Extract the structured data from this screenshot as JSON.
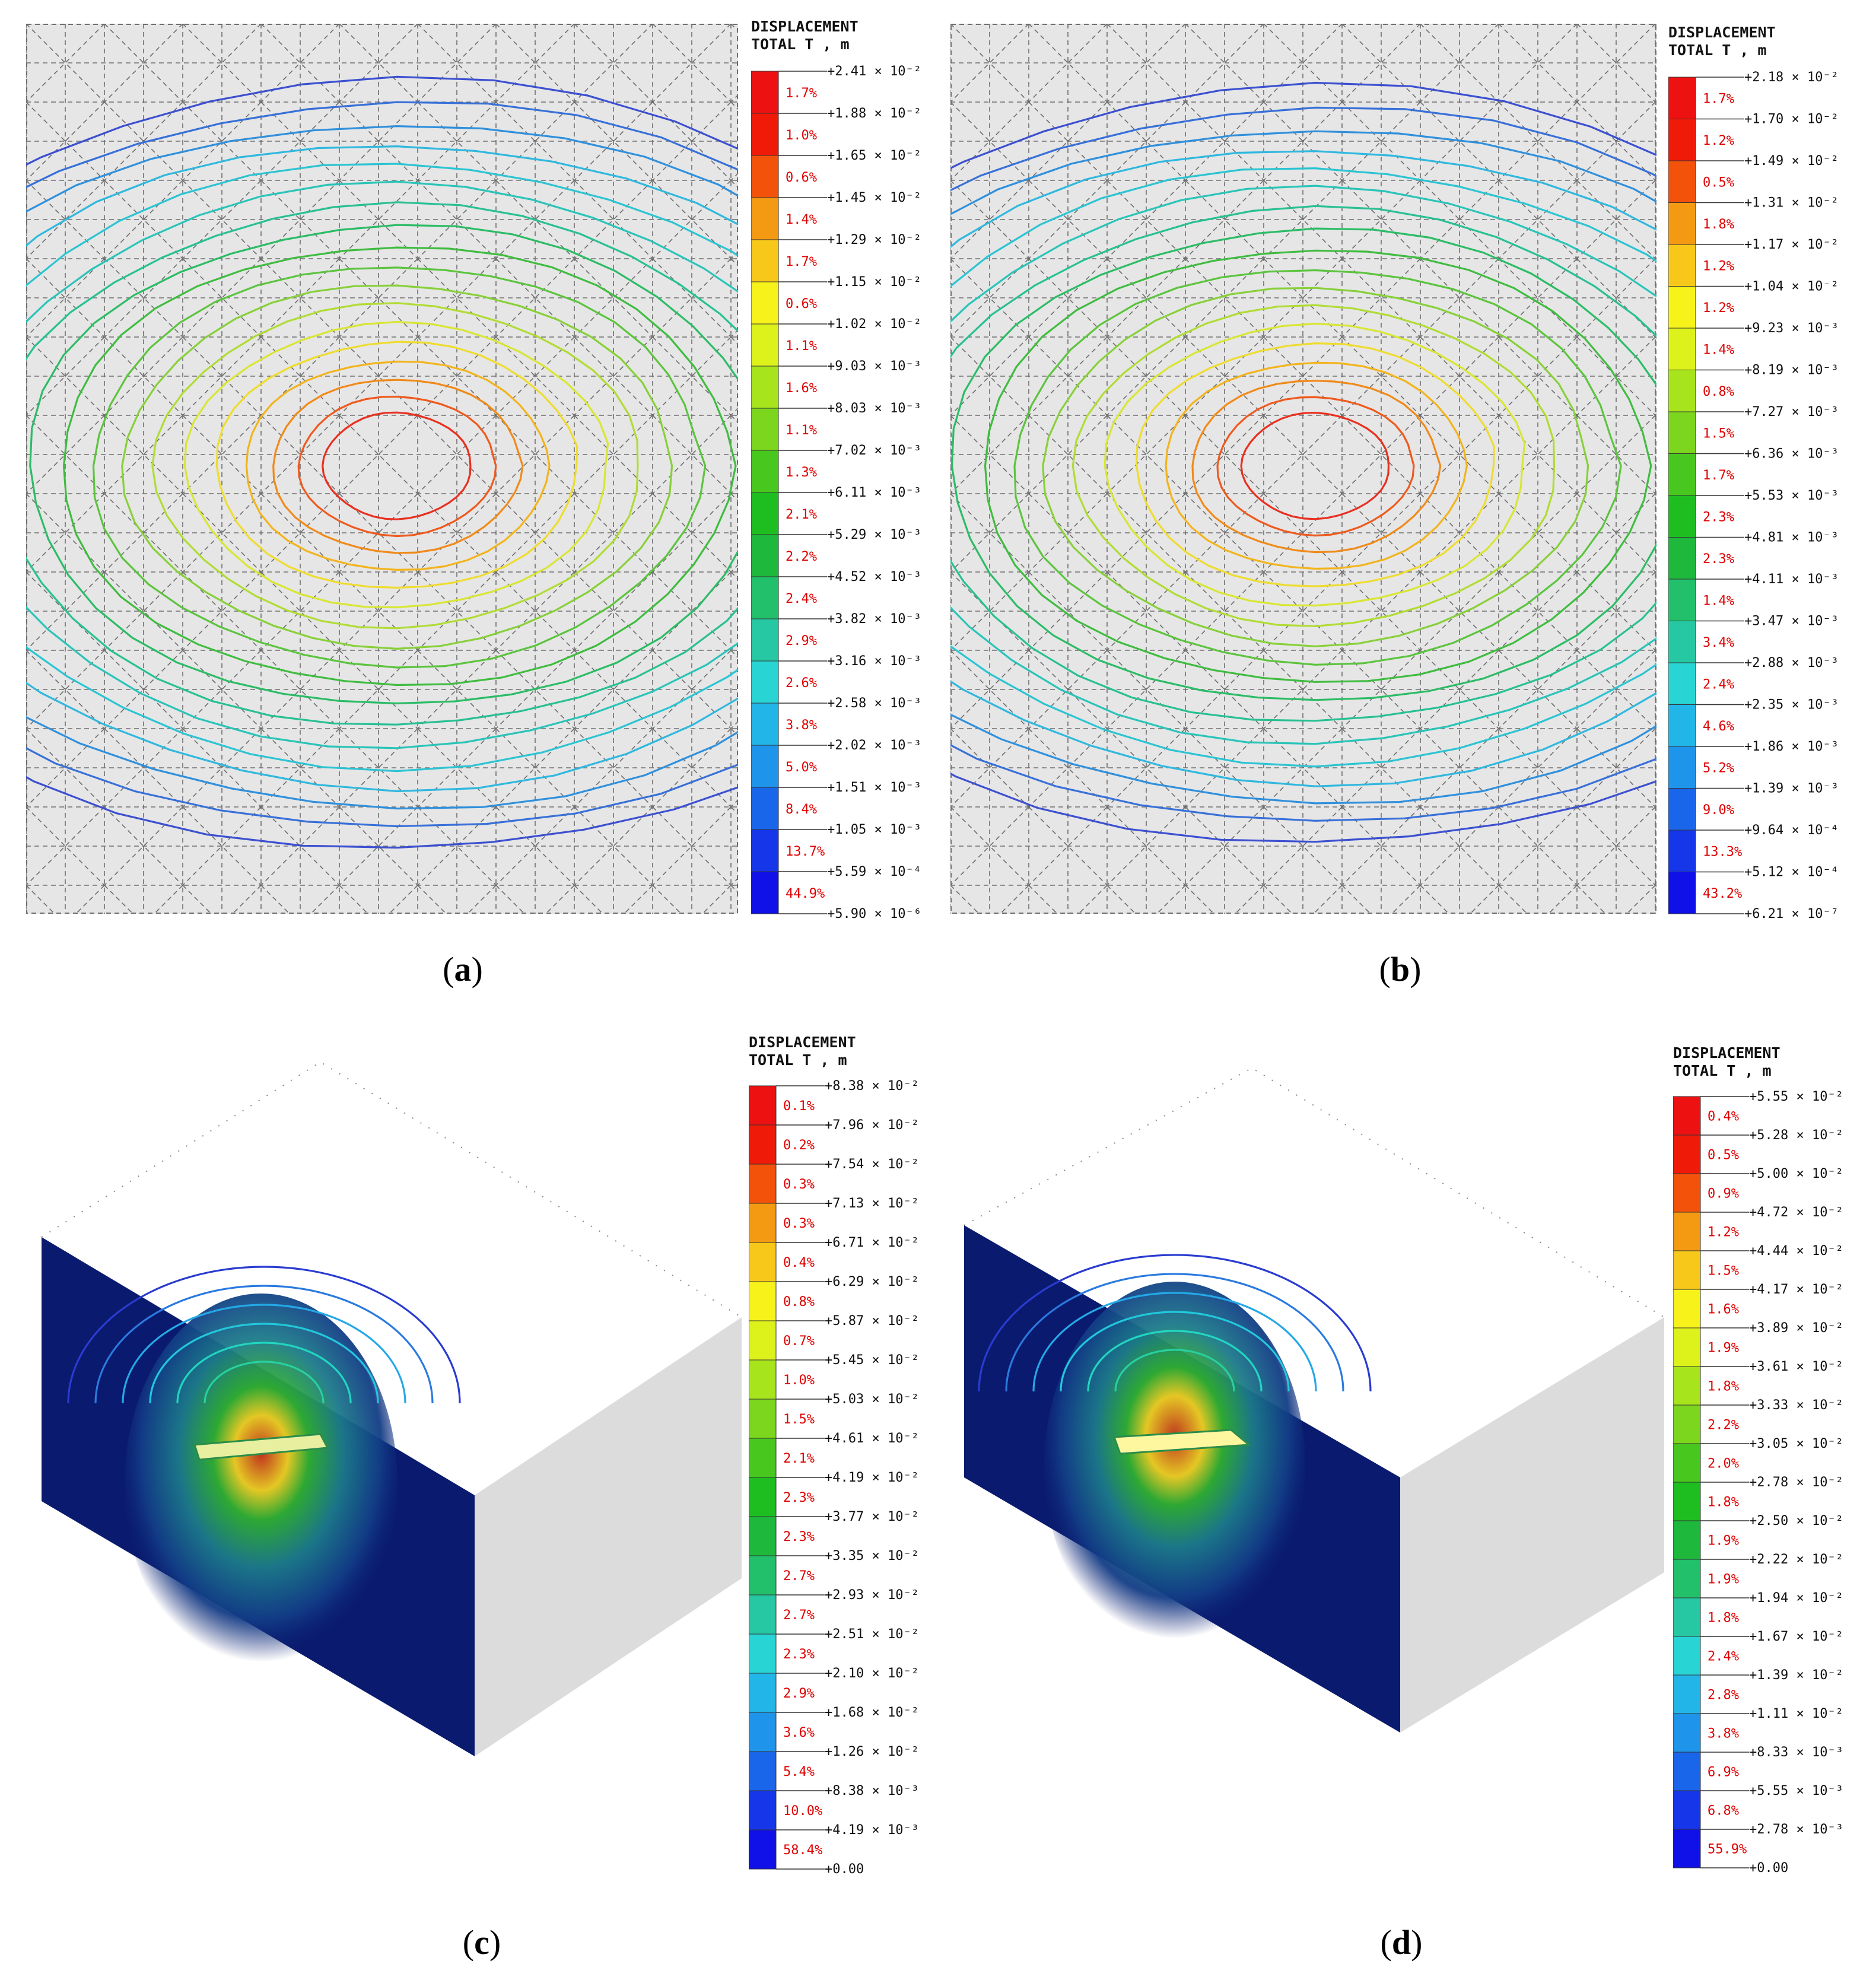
{
  "panels": [
    {
      "id": "a",
      "caption_letter": "a",
      "legend": {
        "title1": "DISPLACEMENT",
        "title2": "TOTAL T , m",
        "values": [
          "+2.41 × 10⁻²",
          "+1.88 × 10⁻²",
          "+1.65 × 10⁻²",
          "+1.45 × 10⁻²",
          "+1.29 × 10⁻²",
          "+1.15 × 10⁻²",
          "+1.02 × 10⁻²",
          "+9.03 × 10⁻³",
          "+8.03 × 10⁻³",
          "+7.02 × 10⁻³",
          "+6.11 × 10⁻³",
          "+5.29 × 10⁻³",
          "+4.52 × 10⁻³",
          "+3.82 × 10⁻³",
          "+3.16 × 10⁻³",
          "+2.58 × 10⁻³",
          "+2.02 × 10⁻³",
          "+1.51 × 10⁻³",
          "+1.05 × 10⁻³",
          "+5.59 × 10⁻⁴",
          "+5.90 × 10⁻⁶"
        ],
        "percents": [
          "1.7%",
          "1.0%",
          "0.6%",
          "1.4%",
          "1.7%",
          "0.6%",
          "1.1%",
          "1.6%",
          "1.1%",
          "1.3%",
          "2.1%",
          "2.2%",
          "2.4%",
          "2.9%",
          "2.6%",
          "3.8%",
          "5.0%",
          "8.4%",
          "13.7%",
          "44.9%"
        ]
      }
    },
    {
      "id": "b",
      "caption_letter": "b",
      "legend": {
        "title1": "DISPLACEMENT",
        "title2": "TOTAL T , m",
        "values": [
          "+2.18 × 10⁻²",
          "+1.70 × 10⁻²",
          "+1.49 × 10⁻²",
          "+1.31 × 10⁻²",
          "+1.17 × 10⁻²",
          "+1.04 × 10⁻²",
          "+9.23 × 10⁻³",
          "+8.19 × 10⁻³",
          "+7.27 × 10⁻³",
          "+6.36 × 10⁻³",
          "+5.53 × 10⁻³",
          "+4.81 × 10⁻³",
          "+4.11 × 10⁻³",
          "+3.47 × 10⁻³",
          "+2.88 × 10⁻³",
          "+2.35 × 10⁻³",
          "+1.86 × 10⁻³",
          "+1.39 × 10⁻³",
          "+9.64 × 10⁻⁴",
          "+5.12 × 10⁻⁴",
          "+6.21 × 10⁻⁷"
        ],
        "percents": [
          "1.7%",
          "1.2%",
          "0.5%",
          "1.8%",
          "1.2%",
          "1.2%",
          "1.4%",
          "0.8%",
          "1.5%",
          "1.7%",
          "2.3%",
          "2.3%",
          "1.4%",
          "3.4%",
          "2.4%",
          "4.6%",
          "5.2%",
          "9.0%",
          "13.3%",
          "43.2%"
        ]
      }
    },
    {
      "id": "c",
      "caption_letter": "c",
      "legend": {
        "title1": "DISPLACEMENT",
        "title2": "TOTAL T , m",
        "values": [
          "+8.38 × 10⁻²",
          "+7.96 × 10⁻²",
          "+7.54 × 10⁻²",
          "+7.13 × 10⁻²",
          "+6.71 × 10⁻²",
          "+6.29 × 10⁻²",
          "+5.87 × 10⁻²",
          "+5.45 × 10⁻²",
          "+5.03 × 10⁻²",
          "+4.61 × 10⁻²",
          "+4.19 × 10⁻²",
          "+3.77 × 10⁻²",
          "+3.35 × 10⁻²",
          "+2.93 × 10⁻²",
          "+2.51 × 10⁻²",
          "+2.10 × 10⁻²",
          "+1.68 × 10⁻²",
          "+1.26 × 10⁻²",
          "+8.38 × 10⁻³",
          "+4.19 × 10⁻³",
          "+0.00"
        ],
        "percents": [
          "0.1%",
          "0.2%",
          "0.3%",
          "0.3%",
          "0.4%",
          "0.8%",
          "0.7%",
          "1.0%",
          "1.5%",
          "2.1%",
          "2.3%",
          "2.3%",
          "2.7%",
          "2.7%",
          "2.3%",
          "2.9%",
          "3.6%",
          "5.4%",
          "10.0%",
          "58.4%"
        ]
      }
    },
    {
      "id": "d",
      "caption_letter": "d",
      "legend": {
        "title1": "DISPLACEMENT",
        "title2": "TOTAL T , m",
        "values": [
          "+5.55 × 10⁻²",
          "+5.28 × 10⁻²",
          "+5.00 × 10⁻²",
          "+4.72 × 10⁻²",
          "+4.44 × 10⁻²",
          "+4.17 × 10⁻²",
          "+3.89 × 10⁻²",
          "+3.61 × 10⁻²",
          "+3.33 × 10⁻²",
          "+3.05 × 10⁻²",
          "+2.78 × 10⁻²",
          "+2.50 × 10⁻²",
          "+2.22 × 10⁻²",
          "+1.94 × 10⁻²",
          "+1.67 × 10⁻²",
          "+1.39 × 10⁻²",
          "+1.11 × 10⁻²",
          "+8.33 × 10⁻³",
          "+5.55 × 10⁻³",
          "+2.78 × 10⁻³",
          "+0.00"
        ],
        "percents": [
          "0.4%",
          "0.5%",
          "0.9%",
          "1.2%",
          "1.5%",
          "1.6%",
          "1.9%",
          "1.8%",
          "2.2%",
          "2.0%",
          "1.8%",
          "1.9%",
          "1.9%",
          "1.8%",
          "2.4%",
          "2.8%",
          "3.8%",
          "6.9%",
          "6.8%",
          "55.9%"
        ]
      }
    }
  ],
  "colors": {
    "scale": [
      "#ee1111",
      "#f01a08",
      "#f2520a",
      "#f39a12",
      "#f7c81a",
      "#f7f21a",
      "#dcf21a",
      "#a8e41c",
      "#7cd61e",
      "#48c81e",
      "#1ebe20",
      "#1eb83c",
      "#22c06a",
      "#26c8a4",
      "#28d4d4",
      "#22b6e8",
      "#1e94ea",
      "#1a66ea",
      "#1636ea",
      "#1010e8"
    ],
    "contour": [
      "#e83020",
      "#ee5a1e",
      "#f08a1a",
      "#f2b41e",
      "#eedc30",
      "#d8e634",
      "#b0dc34",
      "#88d03a",
      "#5cc43e",
      "#40bc40",
      "#2cbc66",
      "#28c092",
      "#2ac4b8",
      "#2cc4d2",
      "#30b8de",
      "#3090dc",
      "#3870d8",
      "#3c50d0"
    ],
    "mesh_bg": "#e6e6e6",
    "mesh_line": "#6e6e6e",
    "section_face": "#0a1a6e",
    "side_face": "#dcdcdc"
  }
}
